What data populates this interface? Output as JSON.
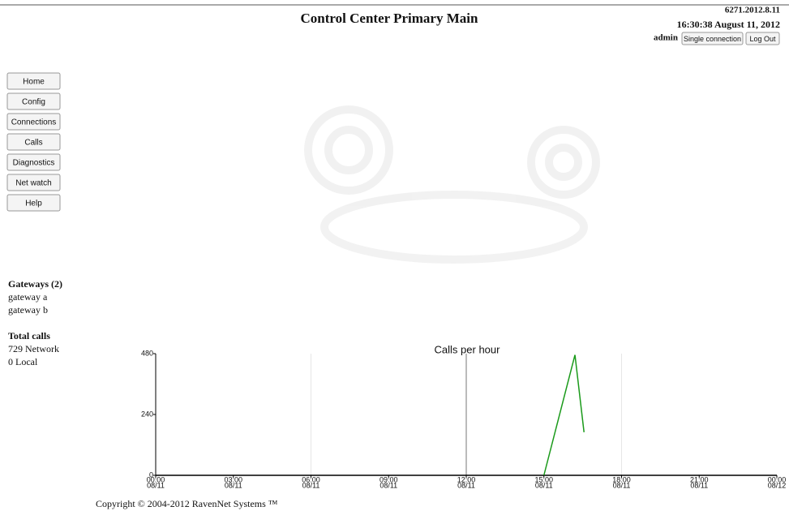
{
  "header": {
    "title": "Control Center Primary Main",
    "version": "6271.2012.8.11",
    "datetime": "16:30:38 August 11, 2012",
    "user": "admin",
    "buttons": [
      "Single connection",
      "Log Out"
    ]
  },
  "nav": [
    "Home",
    "Config",
    "Connections",
    "Calls",
    "Diagnostics",
    "Net watch",
    "Help"
  ],
  "sidebar": {
    "gateways": {
      "heading": "Gateways (2)",
      "items": [
        "gateway a",
        "gateway b"
      ]
    },
    "calls": {
      "heading": "Total calls",
      "items": [
        "729 Network",
        "0 Local"
      ]
    }
  },
  "chart": {
    "type": "line",
    "title": "Calls per hour",
    "x": [
      15,
      16.2,
      16.55
    ],
    "series": [
      {
        "color": "#1a9a1a",
        "values": [
          0,
          475,
          170
        ]
      }
    ],
    "xlim": [
      0,
      24
    ],
    "ylim": [
      0,
      480
    ],
    "xticks": [
      {
        "value": 0,
        "label": [
          "00:00",
          "08/11"
        ]
      },
      {
        "value": 3,
        "label": [
          "03:00",
          "08/11"
        ]
      },
      {
        "value": 6,
        "label": [
          "06:00",
          "08/11"
        ]
      },
      {
        "value": 9,
        "label": [
          "09:00",
          "08/11"
        ]
      },
      {
        "value": 12,
        "label": [
          "12:00",
          "08/11"
        ]
      },
      {
        "value": 15,
        "label": [
          "15:00",
          "08/11"
        ]
      },
      {
        "value": 18,
        "label": [
          "18:00",
          "08/11"
        ]
      },
      {
        "value": 21,
        "label": [
          "21:00",
          "08/11"
        ]
      },
      {
        "value": 24,
        "label": [
          "00:00",
          "08/12"
        ]
      }
    ],
    "yticks": [
      0,
      240,
      480
    ],
    "xgrid": [
      6,
      12,
      18
    ]
  },
  "footer": "Copyright © 2004-2012 RavenNet Systems ™"
}
